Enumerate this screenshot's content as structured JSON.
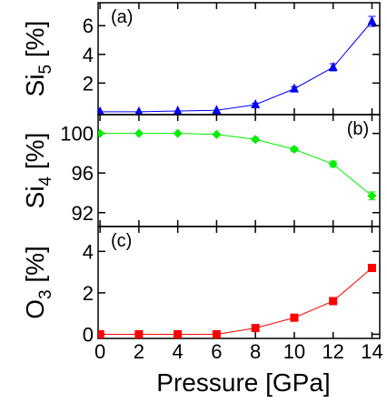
{
  "chart_data": [
    {
      "type": "line",
      "panel": "(a)",
      "ylabel_main": "Si",
      "ylabel_sub": "5",
      "ylabel_unit": " [%]",
      "x": [
        0,
        2,
        4,
        6,
        8,
        10,
        12,
        14
      ],
      "y": [
        0.0,
        0.0,
        0.05,
        0.1,
        0.5,
        1.6,
        3.1,
        6.3
      ],
      "yerr": [
        0,
        0,
        0,
        0,
        0.1,
        0.15,
        0.25,
        0.35
      ],
      "ylim": [
        -0.2,
        7.6
      ],
      "yticks": [
        2,
        4,
        6
      ],
      "color": "#0000ff",
      "marker": "triangle"
    },
    {
      "type": "line",
      "panel": "(b)",
      "ylabel_main": "Si",
      "ylabel_sub": "4",
      "ylabel_unit": " [%]",
      "x": [
        0,
        2,
        4,
        6,
        8,
        10,
        12,
        14
      ],
      "y": [
        100.0,
        100.0,
        100.0,
        99.9,
        99.4,
        98.4,
        96.9,
        93.7
      ],
      "yerr": [
        0,
        0,
        0,
        0,
        0.15,
        0.2,
        0.3,
        0.4
      ],
      "ylim": [
        90.6,
        101.9
      ],
      "yticks": [
        92,
        96,
        100
      ],
      "color": "#00ee00",
      "marker": "diamond"
    },
    {
      "type": "line",
      "panel": "(c)",
      "ylabel_main": "O",
      "ylabel_sub": "3",
      "ylabel_unit": " [%]",
      "x": [
        0,
        2,
        4,
        6,
        8,
        10,
        12,
        14
      ],
      "y": [
        0.0,
        0.0,
        0.0,
        0.0,
        0.3,
        0.8,
        1.6,
        3.2
      ],
      "ylim": [
        -0.2,
        5.2
      ],
      "yticks": [
        0,
        2,
        4
      ],
      "color": "#ff0000",
      "marker": "square"
    }
  ],
  "x_axis": {
    "label": "Pressure [GPa]",
    "ticks": [
      0,
      2,
      4,
      6,
      8,
      10,
      12,
      14
    ],
    "xlim": [
      -0.1,
      14.4
    ]
  }
}
